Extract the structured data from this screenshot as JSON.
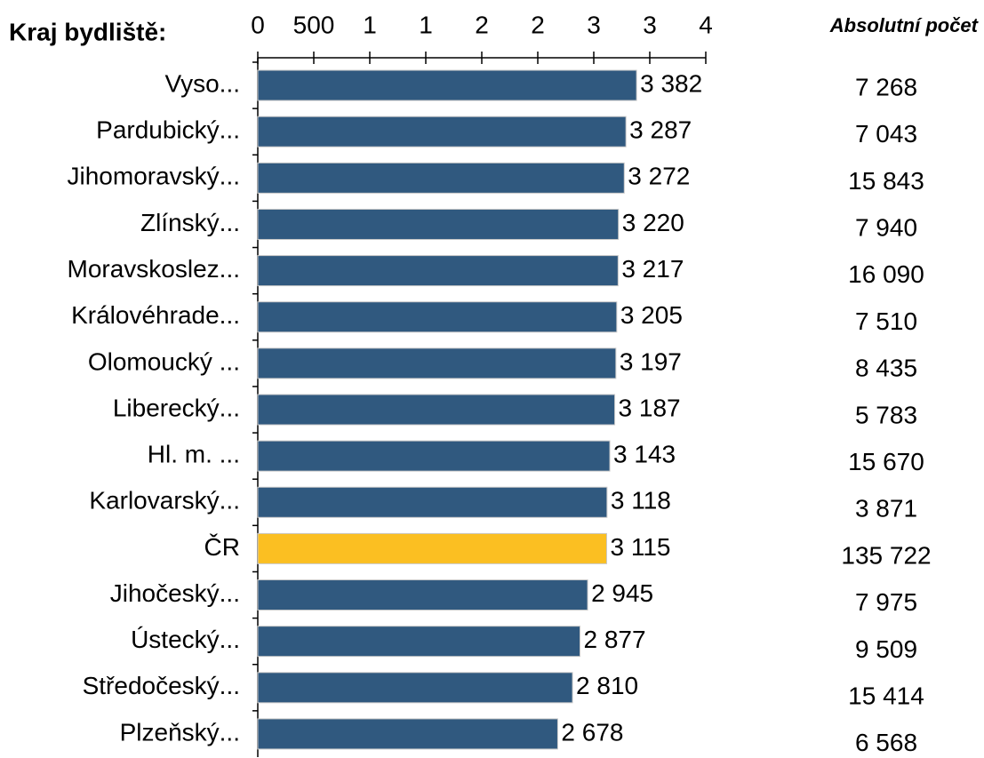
{
  "chart_data": {
    "type": "bar",
    "orientation": "horizontal",
    "axis_label": "Kraj bydliště:",
    "column_header": "Absolutní počet",
    "categories": [
      "Vyso...",
      "Pardubický...",
      "Jihomoravský...",
      "Zlínský...",
      "Moravskoslez...",
      "Královéhrade...",
      "Olomoucký ...",
      "Liberecký...",
      "Hl. m. ...",
      "Karlovarský...",
      "ČR",
      "Jihočeský...",
      "Ústecký...",
      "Středočeský...",
      "Plzeňský..."
    ],
    "values": [
      3382,
      3287,
      3272,
      3220,
      3217,
      3205,
      3197,
      3187,
      3143,
      3118,
      3115,
      2945,
      2877,
      2810,
      2678
    ],
    "value_labels": [
      "3 382",
      "3 287",
      "3 272",
      "3 220",
      "3 217",
      "3 205",
      "3 197",
      "3 187",
      "3 143",
      "3 118",
      "3 115",
      "2 945",
      "2 877",
      "2 810",
      "2 678"
    ],
    "colors": [
      "#30597f",
      "#30597f",
      "#30597f",
      "#30597f",
      "#30597f",
      "#30597f",
      "#30597f",
      "#30597f",
      "#30597f",
      "#30597f",
      "#fbbf22",
      "#30597f",
      "#30597f",
      "#30597f",
      "#30597f"
    ],
    "absolute_counts": [
      7268,
      7043,
      15843,
      7940,
      16090,
      7510,
      8435,
      5783,
      15670,
      3871,
      135722,
      7975,
      9509,
      15414,
      6568
    ],
    "absolute_count_labels": [
      "7 268",
      "7 043",
      "15 843",
      "7 940",
      "16 090",
      "7 510",
      "8 435",
      "5 783",
      "15 670",
      "3 871",
      "135 722",
      "7 975",
      "9 509",
      "15 414",
      "6 568"
    ],
    "xlim": [
      0,
      4000
    ],
    "xticks": [
      0,
      500,
      {
        "value": 1000,
        "label": "1"
      },
      {
        "value": 1500,
        "label": "1"
      },
      {
        "value": 2000,
        "label": "2"
      },
      {
        "value": 2500,
        "label": "2"
      },
      {
        "value": 3000,
        "label": "3"
      },
      {
        "value": 3500,
        "label": "3"
      },
      {
        "value": 4000,
        "label": "4"
      }
    ]
  }
}
